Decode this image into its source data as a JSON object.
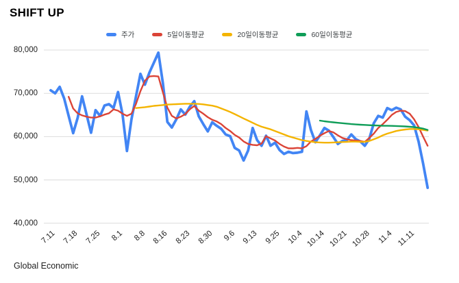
{
  "page": {
    "background": "#ffffff",
    "footer": "Global Economic"
  },
  "header": {
    "title": "SHIFT UP"
  },
  "chart_data": {
    "type": "line",
    "title": "SHIFT UP",
    "grid": true,
    "legend_position": "top",
    "x_axis": {
      "tick_labels": [
        "7.11",
        "7.18",
        "7.25",
        "8.1",
        "8.8",
        "8.16",
        "8.23",
        "8.30",
        "9.6",
        "9.13",
        "9.25",
        "10.4",
        "10.14",
        "10.21",
        "10.28",
        "11.4",
        "11.11"
      ],
      "tick_day_indices": [
        0,
        5,
        10,
        15,
        20,
        25,
        30,
        35,
        40,
        45,
        50,
        55,
        60,
        65,
        70,
        75,
        80
      ]
    },
    "y_axis": {
      "ticks": [
        80000,
        70000,
        60000,
        50000,
        40000
      ],
      "tick_labels": [
        "80,000",
        "70,000",
        "60,000",
        "50,000",
        "40,000"
      ],
      "range": [
        40000,
        81000
      ],
      "gridline_color": "#dcdcdc"
    },
    "series": [
      {
        "name": "주가",
        "color": "#4285F4",
        "line_width": 3.8,
        "start_index": 0,
        "values": [
          70700,
          70000,
          71500,
          68800,
          64800,
          60800,
          64300,
          69300,
          65100,
          60900,
          66100,
          64800,
          67200,
          67500,
          66600,
          70300,
          65200,
          56700,
          64000,
          69200,
          74500,
          72000,
          74800,
          77100,
          79400,
          72300,
          63400,
          62100,
          64000,
          66300,
          65100,
          66900,
          68200,
          64700,
          62900,
          61200,
          63300,
          62500,
          61800,
          60500,
          60100,
          57400,
          56800,
          54500,
          56800,
          62000,
          59200,
          57900,
          60200,
          57900,
          58600,
          56900,
          56000,
          56500,
          56200,
          56300,
          56500,
          65800,
          61500,
          58700,
          60300,
          62000,
          61400,
          59900,
          58300,
          59000,
          59200,
          60500,
          59400,
          58900,
          57900,
          59500,
          63100,
          64800,
          64400,
          66600,
          66100,
          66700,
          66300,
          64600,
          63800,
          62600,
          58800,
          53800,
          48200
        ]
      },
      {
        "name": "5일이동평균",
        "color": "#DB4437",
        "line_width": 2.4,
        "start_index": 4,
        "values": [
          69200,
          66500,
          65400,
          64900,
          64600,
          64400,
          64400,
          64700,
          65100,
          65400,
          66300,
          66000,
          65300,
          64800,
          65300,
          67500,
          70500,
          72900,
          73900,
          74000,
          73900,
          70200,
          66700,
          64800,
          64200,
          64600,
          65200,
          66300,
          67100,
          66000,
          65300,
          64500,
          63900,
          63500,
          62900,
          62000,
          61300,
          60400,
          59800,
          58900,
          58300,
          58100,
          58000,
          58400,
          60100,
          59600,
          59100,
          58300,
          57700,
          57300,
          57300,
          57400,
          57300,
          57800,
          58900,
          59500,
          60200,
          60800,
          61300,
          61000,
          60300,
          59700,
          59400,
          59200,
          59100,
          59000,
          58800,
          59700,
          60700,
          62000,
          62900,
          63900,
          65000,
          65700,
          66000,
          65900,
          65300,
          64000,
          62200,
          60000,
          57900
        ]
      },
      {
        "name": "20일이동평균",
        "color": "#F4B400",
        "line_width": 2.4,
        "start_index": 19,
        "values": [
          66600,
          66700,
          66800,
          66950,
          67100,
          67200,
          67300,
          67400,
          67450,
          67500,
          67550,
          67600,
          67600,
          67600,
          67550,
          67450,
          67300,
          67150,
          66900,
          66500,
          66100,
          65700,
          65200,
          64700,
          64200,
          63700,
          63200,
          62700,
          62300,
          62000,
          61700,
          61300,
          60900,
          60500,
          60100,
          59800,
          59500,
          59200,
          59000,
          58850,
          58700,
          58650,
          58600,
          58600,
          58650,
          58700,
          58750,
          58800,
          58850,
          58850,
          58800,
          58800,
          59000,
          59400,
          59800,
          60300,
          60700,
          61000,
          61300,
          61500,
          61650,
          61750,
          61750,
          61700,
          61550,
          61400
        ]
      },
      {
        "name": "60일이동평균",
        "color": "#0F9D58",
        "line_width": 2.4,
        "start_index": 60,
        "values": [
          63700,
          63550,
          63420,
          63300,
          63200,
          63100,
          63000,
          62900,
          62820,
          62750,
          62700,
          62650,
          62600,
          62560,
          62520,
          62500,
          62480,
          62450,
          62400,
          62350,
          62280,
          62200,
          62050,
          61850,
          61550
        ]
      }
    ]
  }
}
